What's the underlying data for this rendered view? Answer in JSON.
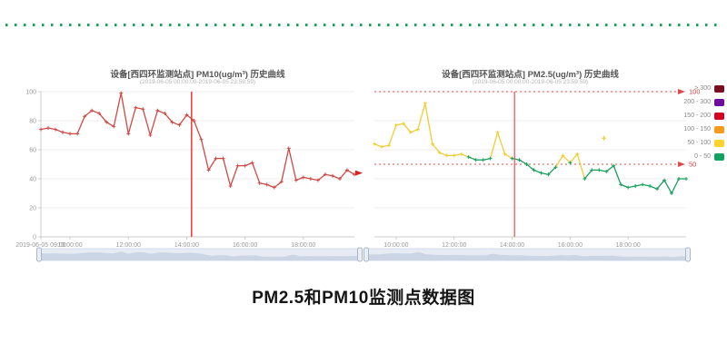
{
  "page": {
    "bottom_title": "PM2.5和PM10监测点数据图",
    "divider_color": "#18a15c"
  },
  "chart_data": [
    {
      "type": "line",
      "title": "设备[西四环监测站点] PM10(ug/m³) 历史曲线",
      "subtitle": "(2019-06-05 00:00:00-2019-06-05 23:59:59)",
      "ylim": [
        0,
        100
      ],
      "y_ticks": [
        0,
        20,
        40,
        60,
        80,
        100
      ],
      "show_y_axis": true,
      "grid": true,
      "x_start": "09:00",
      "x_step_minutes": 15,
      "x_ticks": [
        {
          "label": "2019-06-05 09:00",
          "time": "09:00"
        },
        {
          "label": "10:00:00",
          "time": "10:00"
        },
        {
          "label": "12:00:00",
          "time": "12:00"
        },
        {
          "label": "14:00:00",
          "time": "14:00"
        },
        {
          "label": "16:00:00",
          "time": "16:00"
        },
        {
          "label": "18:00:00",
          "time": "18:00"
        }
      ],
      "values": [
        74,
        75,
        74,
        72,
        71,
        71,
        83,
        87,
        85,
        79,
        76,
        99,
        71,
        89,
        88,
        70,
        87,
        85,
        79,
        77,
        84,
        80,
        67,
        46,
        54,
        54,
        35,
        49,
        49,
        51,
        37,
        36,
        34,
        38,
        61,
        39,
        41,
        40,
        39,
        43,
        42,
        40,
        46,
        43
      ],
      "line_color": "#cf4a45",
      "markline": {
        "time": "14:10",
        "color": "#ff2222"
      },
      "end_arrow": {
        "value": 44,
        "color": "#e02020"
      }
    },
    {
      "type": "line",
      "title": "设备[西四环监测站点] PM2.5(ug/m³) 历史曲线",
      "subtitle": "(2019-06-05 00:00:00-2019-06-05 23:59:59)",
      "ylim": [
        0,
        100
      ],
      "y_ticks": [
        0,
        20,
        40,
        60,
        80,
        100
      ],
      "show_y_axis": false,
      "grid": true,
      "x_start": "09:15",
      "x_step_minutes": 15,
      "x_ticks": [
        {
          "label": "10:00:00",
          "time": "10:00"
        },
        {
          "label": "12:00:00",
          "time": "12:00"
        },
        {
          "label": "14:00:00",
          "time": "14:00"
        },
        {
          "label": "16:00:00",
          "time": "16:00"
        },
        {
          "label": "18:00:00",
          "time": "18:00"
        }
      ],
      "values": [
        64,
        62,
        63,
        77,
        78,
        72,
        74,
        92,
        64,
        58,
        56,
        56,
        57,
        55,
        53,
        53,
        54,
        72,
        57,
        54,
        53,
        50,
        46,
        44,
        43,
        48,
        56,
        51,
        57,
        40,
        46,
        46,
        45,
        49,
        36,
        34,
        35,
        36,
        35,
        33,
        39,
        30,
        40,
        40
      ],
      "threshold": 55,
      "color_low": "#18a05e",
      "color_high": "#f0cd35",
      "hlines": [
        {
          "value": 100,
          "label": "100"
        },
        {
          "value": 50,
          "label": "50"
        }
      ],
      "hline_color": "#e04848",
      "markline": {
        "time": "14:05",
        "color": "#ee6666"
      },
      "outlier": {
        "time": "17:10",
        "value": 68,
        "color": "#f0cd35"
      },
      "legend": [
        {
          "label": "> 300",
          "color": "#790d1f"
        },
        {
          "label": "200 - 300",
          "color": "#6f0b9e"
        },
        {
          "label": "150 - 200",
          "color": "#d70022"
        },
        {
          "label": "100 - 150",
          "color": "#f79a1c"
        },
        {
          "label": "50 - 100",
          "color": "#ffd22e"
        },
        {
          "label": "0 - 50",
          "color": "#12a260"
        }
      ]
    }
  ]
}
